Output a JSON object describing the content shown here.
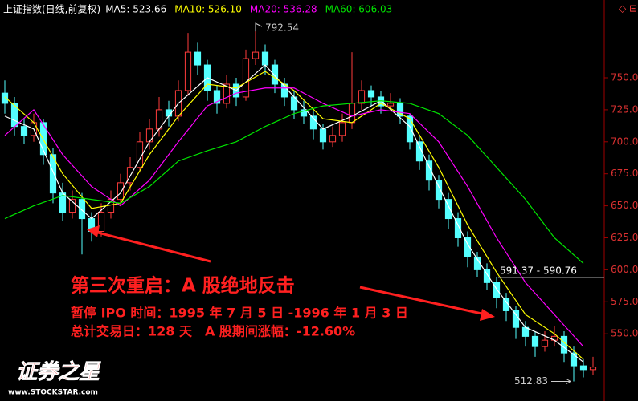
{
  "chart_data": {
    "type": "candlestick",
    "title": "上证指数(日线,前复权)",
    "x": [
      0,
      1,
      2,
      3,
      4,
      5,
      6,
      7,
      8,
      9,
      10,
      11,
      12,
      13,
      14,
      15,
      16,
      17,
      18,
      19,
      20,
      21,
      22,
      23,
      24,
      25,
      26,
      27,
      28,
      29,
      30,
      31,
      32,
      33,
      34,
      35,
      36,
      37,
      38,
      39,
      40,
      41,
      42,
      43,
      44,
      45,
      46,
      47,
      48,
      49,
      50,
      51,
      52,
      53,
      54,
      55,
      56,
      57,
      58,
      59,
      60,
      61
    ],
    "xlim": [
      -0.5,
      62
    ],
    "candles": [
      [
        738,
        748,
        722,
        730
      ],
      [
        730,
        735,
        705,
        712
      ],
      [
        712,
        718,
        698,
        705
      ],
      [
        705,
        722,
        700,
        715
      ],
      [
        715,
        718,
        682,
        690
      ],
      [
        690,
        695,
        652,
        660
      ],
      [
        660,
        668,
        638,
        645
      ],
      [
        645,
        662,
        640,
        655
      ],
      [
        655,
        660,
        612,
        640
      ],
      [
        640,
        645,
        622,
        630
      ],
      [
        630,
        652,
        626,
        645
      ],
      [
        645,
        662,
        640,
        655
      ],
      [
        655,
        675,
        650,
        668
      ],
      [
        668,
        688,
        662,
        680
      ],
      [
        680,
        708,
        676,
        700
      ],
      [
        700,
        718,
        694,
        710
      ],
      [
        710,
        735,
        704,
        725
      ],
      [
        725,
        732,
        712,
        720
      ],
      [
        720,
        748,
        716,
        740
      ],
      [
        740,
        785,
        736,
        770
      ],
      [
        770,
        778,
        752,
        760
      ],
      [
        760,
        764,
        732,
        740
      ],
      [
        740,
        744,
        722,
        730
      ],
      [
        730,
        752,
        726,
        745
      ],
      [
        745,
        750,
        728,
        735
      ],
      [
        735,
        772,
        732,
        765
      ],
      [
        765,
        792.54,
        760,
        770
      ],
      [
        770,
        776,
        752,
        760
      ],
      [
        760,
        764,
        738,
        745
      ],
      [
        745,
        750,
        728,
        735
      ],
      [
        735,
        740,
        718,
        725
      ],
      [
        725,
        732,
        714,
        720
      ],
      [
        720,
        724,
        702,
        710
      ],
      [
        710,
        714,
        694,
        700
      ],
      [
        700,
        712,
        696,
        705
      ],
      [
        705,
        722,
        700,
        715
      ],
      [
        715,
        770,
        710,
        730
      ],
      [
        730,
        748,
        725,
        740
      ],
      [
        740,
        744,
        728,
        735
      ],
      [
        735,
        740,
        722,
        728
      ],
      [
        728,
        738,
        724,
        730
      ],
      [
        730,
        734,
        714,
        720
      ],
      [
        720,
        722,
        694,
        700
      ],
      [
        700,
        704,
        678,
        685
      ],
      [
        685,
        690,
        662,
        670
      ],
      [
        670,
        674,
        648,
        655
      ],
      [
        655,
        660,
        632,
        640
      ],
      [
        640,
        645,
        618,
        625
      ],
      [
        625,
        630,
        602,
        610
      ],
      [
        610,
        614,
        594,
        600
      ],
      [
        600,
        605,
        584,
        590
      ],
      [
        590,
        594,
        570,
        578
      ],
      [
        578,
        582,
        560,
        568
      ],
      [
        568,
        572,
        546,
        555
      ],
      [
        555,
        560,
        540,
        548
      ],
      [
        548,
        552,
        532,
        540
      ],
      [
        540,
        552,
        536,
        545
      ],
      [
        545,
        556,
        540,
        548
      ],
      [
        548,
        552,
        528,
        535
      ],
      [
        535,
        540,
        512.83,
        525
      ],
      [
        525,
        530,
        516,
        522
      ],
      [
        522,
        532,
        518,
        524
      ]
    ],
    "up_color": "#ff3c3c",
    "down_color": "#54ffff",
    "series": [
      {
        "name": "MA5: 523.66",
        "color": "#ffffff",
        "x": [
          0,
          3,
          6,
          9,
          12,
          15,
          18,
          21,
          24,
          27,
          30,
          33,
          36,
          39,
          42,
          45,
          48,
          51,
          54,
          57,
          60
        ],
        "values": [
          720,
          710,
          660,
          640,
          660,
          700,
          730,
          750,
          740,
          760,
          735,
          710,
          720,
          732,
          712,
          665,
          620,
          585,
          555,
          545,
          528
        ]
      },
      {
        "name": "MA10: 526.10",
        "color": "#ffff00",
        "x": [
          0,
          3,
          6,
          9,
          12,
          15,
          18,
          21,
          24,
          27,
          30,
          33,
          36,
          39,
          42,
          45,
          48,
          51,
          54,
          57,
          60
        ],
        "values": [
          735,
          715,
          675,
          648,
          652,
          690,
          720,
          745,
          742,
          755,
          740,
          718,
          715,
          730,
          718,
          680,
          635,
          598,
          565,
          550,
          530
        ]
      },
      {
        "name": "MA20: 536.28",
        "color": "#ff00ff",
        "x": [
          0,
          3,
          6,
          9,
          12,
          15,
          18,
          21,
          24,
          27,
          30,
          33,
          36,
          39,
          42,
          45,
          48,
          51,
          54,
          57,
          60
        ],
        "values": [
          705,
          725,
          690,
          665,
          650,
          670,
          700,
          728,
          738,
          742,
          742,
          730,
          720,
          725,
          722,
          700,
          665,
          625,
          590,
          565,
          540
        ]
      },
      {
        "name": "MA60: 606.03",
        "color": "#00e600",
        "x": [
          0,
          3,
          6,
          9,
          12,
          15,
          18,
          21,
          24,
          27,
          30,
          33,
          36,
          39,
          42,
          45,
          48,
          51,
          54,
          57,
          60
        ],
        "values": [
          640,
          650,
          658,
          655,
          652,
          665,
          685,
          693,
          700,
          712,
          722,
          728,
          730,
          732,
          730,
          722,
          705,
          680,
          655,
          625,
          605
        ]
      }
    ],
    "ylim": [
      505,
      797
    ],
    "yticks": [
      {
        "value": 550,
        "label": "550.00"
      },
      {
        "value": 575,
        "label": "575.00"
      },
      {
        "value": 600,
        "label": "600.00"
      },
      {
        "value": 625,
        "label": "625.00"
      },
      {
        "value": 650,
        "label": "650.00"
      },
      {
        "value": 675,
        "label": "675.00"
      },
      {
        "value": 700,
        "label": "700.00"
      },
      {
        "value": 725,
        "label": "725.00"
      },
      {
        "value": 750,
        "label": "750.00"
      }
    ],
    "high_label": 792.54,
    "low_label": 512.83,
    "range_label": "591.37 - 590.76",
    "headline": "第三次重启：A 股绝地反击",
    "note_1": "暂停 IPO 时间：1995 年 7 月 5 日 -1996 年 1 月 3 日",
    "note_2": "总计交易日：128 天　A 股期间涨幅：-12.60%",
    "watermark": "证券之星",
    "watermark_url": "www.STOCKSTAR.com"
  }
}
